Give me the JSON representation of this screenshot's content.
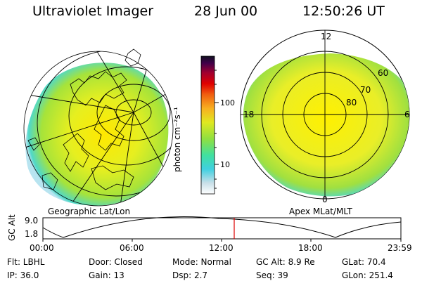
{
  "header": {
    "instrument": "Ultraviolet Imager",
    "date": "28 Jun 00",
    "time": "12:50:26 UT"
  },
  "colorbar": {
    "unit_label": "photon cm⁻²s⁻¹",
    "ticks": [
      "100",
      "10"
    ]
  },
  "left_panel": {
    "caption": "Geographic Lat/Lon"
  },
  "right_panel": {
    "caption": "Apex MLat/MLT",
    "mlt_labels": {
      "top": "12",
      "left": "18",
      "right": "6",
      "bottom": "0"
    },
    "lat_labels": [
      "60",
      "70",
      "80"
    ]
  },
  "altitude_plot": {
    "ylabel": "GC Alt",
    "yticks": [
      "9.0",
      "1.8"
    ],
    "xticks": [
      "00:00",
      "06:00",
      "12:00",
      "18:00",
      "23:59"
    ],
    "marker_time": "12:50"
  },
  "info": {
    "row1": {
      "flt": "Flt: LBHL",
      "door": "Door: Closed",
      "mode": "Mode: Normal",
      "gcalt": "GC Alt: 8.9 Re",
      "glat": "GLat:  70.4"
    },
    "row2": {
      "ip": "IP: 36.0",
      "gain": "Gain: 13",
      "dsp": "Dsp:    2.7",
      "seq": "Seq: 39",
      "glon": "GLon: 251.4"
    }
  },
  "colors": {
    "palette": [
      "#ffffff",
      "#c8dfe8",
      "#40d0e0",
      "#40e0a0",
      "#90e040",
      "#e0e820",
      "#f8b020",
      "#f06010",
      "#e00000",
      "#a00030",
      "#40004a",
      "#101020"
    ],
    "marker": "#dd0000"
  }
}
